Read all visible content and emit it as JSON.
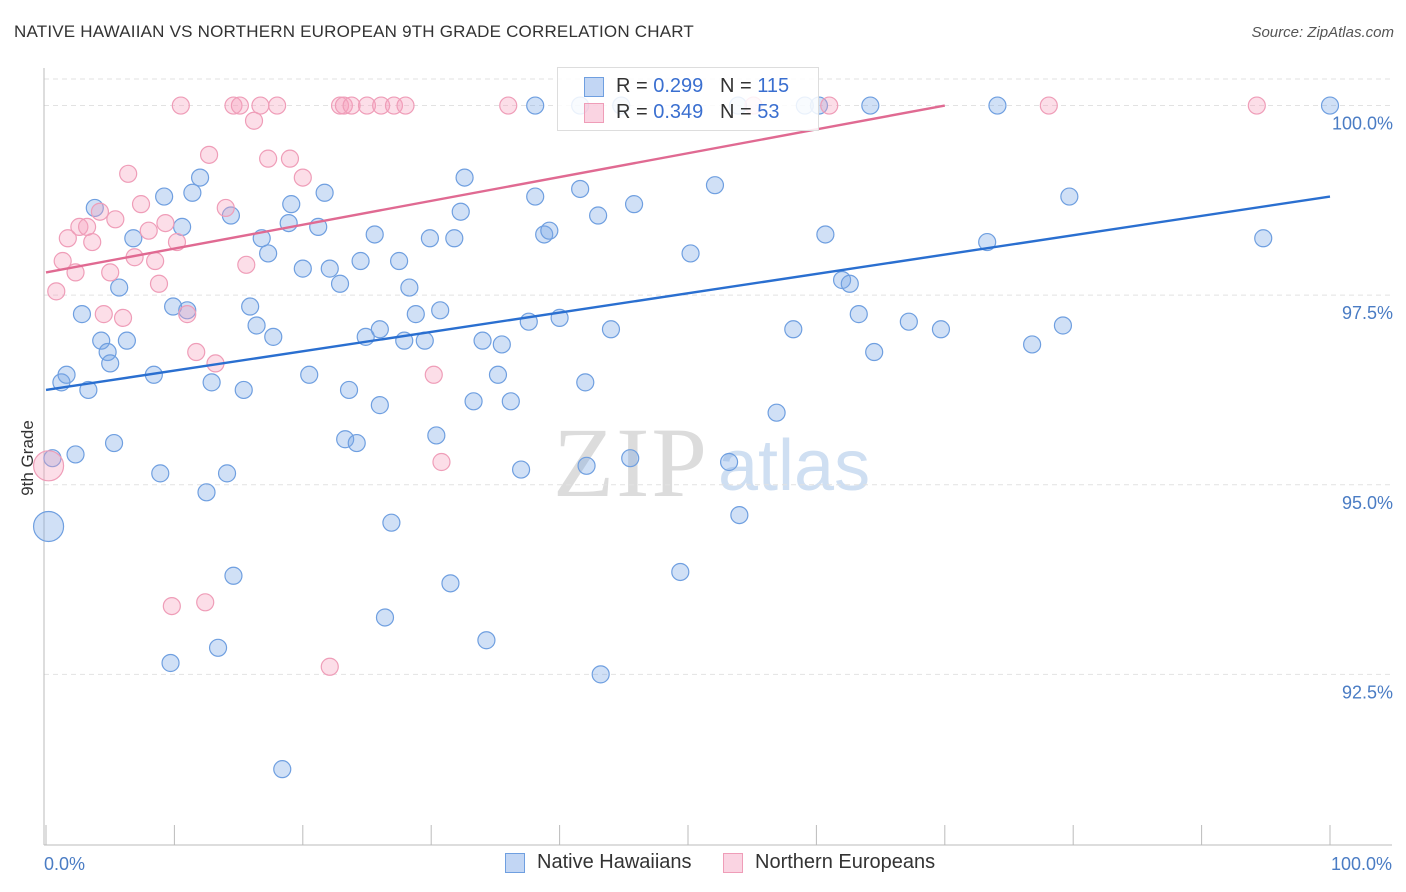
{
  "header": {
    "title": "NATIVE HAWAIIAN VS NORTHERN EUROPEAN 9TH GRADE CORRELATION CHART",
    "source": "Source: ZipAtlas.com"
  },
  "watermark": {
    "zip": "ZIP",
    "atlas": "atlas"
  },
  "legend": {
    "rows": [
      {
        "r_label": "R =",
        "r_value": "0.299",
        "n_label": "N =",
        "n_value": "115"
      },
      {
        "r_label": "R =",
        "r_value": "0.349",
        "n_label": "N =",
        "n_value": "53"
      }
    ]
  },
  "bottom_legend": [
    "Native Hawaiians",
    "Northern Europeans"
  ],
  "chart_data": {
    "type": "scatter",
    "title": "NATIVE HAWAIIAN VS NORTHERN EUROPEAN 9TH GRADE CORRELATION CHART",
    "xlabel": "",
    "ylabel": "9th Grade",
    "xlim": [
      0,
      100
    ],
    "ylim": [
      90.25,
      100.35
    ],
    "x_tick_labels": [
      "0.0%",
      "100.0%"
    ],
    "y_ticks": [
      92.5,
      95.0,
      97.5,
      100.0
    ],
    "y_tick_labels": [
      "92.5%",
      "95.0%",
      "97.5%",
      "100.0%"
    ],
    "colors": {
      "native_fill": "rgba(120,165,230,0.35)",
      "native_stroke": "#6f9fe0",
      "native_line": "#2a6fd0",
      "northern_fill": "rgba(245,160,190,0.35)",
      "northern_stroke": "#ef9db8",
      "northern_line": "#e06a92",
      "tick_text": "#4a7cc4",
      "grid": "#e2e2e2"
    },
    "series": [
      {
        "name": "Native Hawaiians",
        "R": 0.299,
        "N": 115,
        "trend": [
          [
            0,
            96.25
          ],
          [
            100,
            98.8
          ]
        ],
        "points": [
          [
            0.2,
            94.45,
            2
          ],
          [
            0.5,
            95.35,
            1
          ],
          [
            1.2,
            96.35,
            1
          ],
          [
            1.6,
            96.45,
            1
          ],
          [
            2.3,
            95.4,
            1
          ],
          [
            2.8,
            97.25,
            1
          ],
          [
            3.3,
            96.25,
            1
          ],
          [
            3.8,
            98.65,
            1
          ],
          [
            4.3,
            96.9,
            1
          ],
          [
            4.8,
            96.75,
            1
          ],
          [
            5.3,
            95.55,
            1
          ],
          [
            5.7,
            97.6,
            1
          ],
          [
            6.3,
            96.9,
            1
          ],
          [
            6.8,
            98.25,
            1
          ],
          [
            8.4,
            96.45,
            1
          ],
          [
            8.9,
            95.15,
            1
          ],
          [
            9.2,
            98.8,
            1
          ],
          [
            9.7,
            92.65,
            1
          ],
          [
            9.9,
            97.35,
            1
          ],
          [
            10.6,
            98.4,
            1
          ],
          [
            11.0,
            97.3,
            1
          ],
          [
            11.4,
            98.85,
            1
          ],
          [
            12.0,
            99.05,
            1
          ],
          [
            12.5,
            94.9,
            1
          ],
          [
            12.9,
            96.35,
            1
          ],
          [
            13.4,
            92.85,
            1
          ],
          [
            14.1,
            95.15,
            1
          ],
          [
            14.4,
            98.55,
            1
          ],
          [
            14.6,
            93.8,
            1
          ],
          [
            15.4,
            96.25,
            1
          ],
          [
            15.9,
            97.35,
            1
          ],
          [
            16.4,
            97.1,
            1
          ],
          [
            16.8,
            98.25,
            1
          ],
          [
            17.3,
            98.05,
            1
          ],
          [
            17.7,
            96.95,
            1
          ],
          [
            18.4,
            91.25,
            1
          ],
          [
            18.9,
            98.45,
            1
          ],
          [
            19.1,
            98.7,
            1
          ],
          [
            20.0,
            97.85,
            1
          ],
          [
            20.5,
            96.45,
            1
          ],
          [
            21.2,
            98.4,
            1
          ],
          [
            21.7,
            98.85,
            1
          ],
          [
            22.1,
            97.85,
            1
          ],
          [
            22.9,
            97.65,
            1
          ],
          [
            23.3,
            95.6,
            1
          ],
          [
            23.6,
            96.25,
            1
          ],
          [
            24.2,
            95.55,
            1
          ],
          [
            24.5,
            97.95,
            1
          ],
          [
            24.9,
            96.95,
            1
          ],
          [
            25.6,
            98.3,
            1
          ],
          [
            26.0,
            96.05,
            1
          ],
          [
            26.4,
            93.25,
            1
          ],
          [
            26.9,
            94.5,
            1
          ],
          [
            27.5,
            97.95,
            1
          ],
          [
            27.9,
            96.9,
            1
          ],
          [
            28.3,
            97.6,
            1
          ],
          [
            28.8,
            97.25,
            1
          ],
          [
            29.5,
            96.9,
            1
          ],
          [
            29.9,
            98.25,
            1
          ],
          [
            30.4,
            95.65,
            1
          ],
          [
            30.7,
            97.3,
            1
          ],
          [
            31.5,
            93.7,
            1
          ],
          [
            31.8,
            98.25,
            1
          ],
          [
            32.3,
            98.6,
            1
          ],
          [
            32.6,
            99.05,
            1
          ],
          [
            33.3,
            96.1,
            1
          ],
          [
            34.0,
            96.9,
            1
          ],
          [
            34.3,
            92.95,
            1
          ],
          [
            35.2,
            96.45,
            1
          ],
          [
            35.5,
            96.85,
            1
          ],
          [
            36.2,
            96.1,
            1
          ],
          [
            37.0,
            95.2,
            1
          ],
          [
            37.6,
            97.15,
            1
          ],
          [
            38.1,
            98.8,
            1
          ],
          [
            38.8,
            98.3,
            1
          ],
          [
            39.2,
            98.35,
            1
          ],
          [
            40.0,
            97.2,
            1
          ],
          [
            41.6,
            98.9,
            1
          ],
          [
            42.0,
            96.35,
            1
          ],
          [
            43.0,
            98.55,
            1
          ],
          [
            42.1,
            95.25,
            1
          ],
          [
            43.2,
            92.5,
            1
          ],
          [
            44.0,
            97.05,
            1
          ],
          [
            45.5,
            95.35,
            1
          ],
          [
            45.8,
            98.7,
            1
          ],
          [
            49.4,
            93.85,
            1
          ],
          [
            50.2,
            98.05,
            1
          ],
          [
            52.1,
            98.95,
            1
          ],
          [
            53.2,
            95.3,
            1
          ],
          [
            54.0,
            94.6,
            1
          ],
          [
            56.9,
            95.95,
            1
          ],
          [
            58.2,
            97.05,
            1
          ],
          [
            60.7,
            98.3,
            1
          ],
          [
            62.0,
            97.7,
            1
          ],
          [
            62.6,
            97.65,
            1
          ],
          [
            63.3,
            97.25,
            1
          ],
          [
            64.5,
            96.75,
            1
          ],
          [
            67.2,
            97.15,
            1
          ],
          [
            69.7,
            97.05,
            1
          ],
          [
            73.3,
            98.2,
            1
          ],
          [
            76.8,
            96.85,
            1
          ],
          [
            79.2,
            97.1,
            1
          ],
          [
            79.7,
            98.8,
            1
          ],
          [
            94.8,
            98.25,
            1
          ],
          [
            64.2,
            100.0,
            1
          ],
          [
            74.1,
            100.0,
            1
          ],
          [
            100.0,
            100.0,
            1
          ],
          [
            59.1,
            100.0,
            1
          ],
          [
            60.2,
            100.0,
            1
          ],
          [
            53.9,
            100.0,
            1
          ],
          [
            41.6,
            100.0,
            1
          ],
          [
            44.8,
            100.0,
            1
          ],
          [
            38.1,
            100.0,
            1
          ],
          [
            5.0,
            96.6,
            1
          ],
          [
            26.0,
            97.05,
            1
          ]
        ]
      },
      {
        "name": "Northern Europeans",
        "R": 0.349,
        "N": 53,
        "trend": [
          [
            0,
            97.8
          ],
          [
            70,
            100.0
          ]
        ],
        "points": [
          [
            0.2,
            95.25,
            2
          ],
          [
            0.8,
            97.55,
            1
          ],
          [
            1.3,
            97.95,
            1
          ],
          [
            1.7,
            98.25,
            1
          ],
          [
            2.3,
            97.8,
            1
          ],
          [
            2.6,
            98.4,
            1
          ],
          [
            3.2,
            98.4,
            1
          ],
          [
            3.6,
            98.2,
            1
          ],
          [
            4.2,
            98.6,
            1
          ],
          [
            4.5,
            97.25,
            1
          ],
          [
            5.0,
            97.8,
            1
          ],
          [
            5.4,
            98.5,
            1
          ],
          [
            6.0,
            97.2,
            1
          ],
          [
            6.4,
            99.1,
            1
          ],
          [
            6.9,
            98.0,
            1
          ],
          [
            7.4,
            98.7,
            1
          ],
          [
            8.0,
            98.35,
            1
          ],
          [
            8.5,
            97.95,
            1
          ],
          [
            8.8,
            97.65,
            1
          ],
          [
            9.3,
            98.45,
            1
          ],
          [
            9.8,
            93.4,
            1
          ],
          [
            10.2,
            98.2,
            1
          ],
          [
            11.0,
            97.25,
            1
          ],
          [
            11.7,
            96.75,
            1
          ],
          [
            12.4,
            93.45,
            1
          ],
          [
            12.7,
            99.35,
            1
          ],
          [
            13.2,
            96.6,
            1
          ],
          [
            14.0,
            98.65,
            1
          ],
          [
            14.6,
            100.0,
            1
          ],
          [
            15.1,
            100.0,
            1
          ],
          [
            15.6,
            97.9,
            1
          ],
          [
            16.2,
            99.8,
            1
          ],
          [
            16.7,
            100.0,
            1
          ],
          [
            17.3,
            99.3,
            1
          ],
          [
            18.0,
            100.0,
            1
          ],
          [
            19.0,
            99.3,
            1
          ],
          [
            20.0,
            99.05,
            1
          ],
          [
            22.1,
            92.6,
            1
          ],
          [
            22.9,
            100.0,
            1
          ],
          [
            23.2,
            100.0,
            1
          ],
          [
            23.8,
            100.0,
            1
          ],
          [
            25.0,
            100.0,
            1
          ],
          [
            26.1,
            100.0,
            1
          ],
          [
            27.1,
            100.0,
            1
          ],
          [
            28.0,
            100.0,
            1
          ],
          [
            30.2,
            96.45,
            1
          ],
          [
            30.8,
            95.3,
            1
          ],
          [
            36.0,
            100.0,
            1
          ],
          [
            55.1,
            100.0,
            1
          ],
          [
            61.0,
            100.0,
            1
          ],
          [
            78.1,
            100.0,
            1
          ],
          [
            94.3,
            100.0,
            1
          ],
          [
            10.5,
            100.0,
            1
          ]
        ]
      }
    ]
  }
}
